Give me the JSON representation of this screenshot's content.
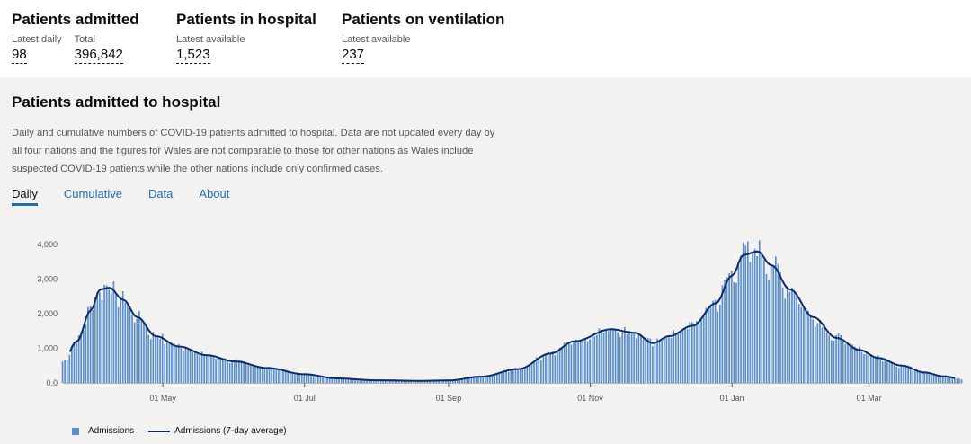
{
  "headlines": [
    {
      "title": "Patients admitted",
      "metrics": [
        {
          "label": "Latest daily",
          "value": "98"
        },
        {
          "label": "Total",
          "value": "396,842"
        }
      ]
    },
    {
      "title": "Patients in hospital",
      "metrics": [
        {
          "label": "Latest available",
          "value": "1,523"
        }
      ]
    },
    {
      "title": "Patients on ventilation",
      "metrics": [
        {
          "label": "Latest available",
          "value": "237"
        }
      ]
    }
  ],
  "card": {
    "title": "Patients admitted to hospital",
    "description": "Daily and cumulative numbers of COVID-19 patients admitted to hospital. Data are not updated every day by all four nations and the figures for Wales are not comparable to those for other nations as Wales include suspected COVID-19 patients while the other nations include only confirmed cases.",
    "tabs": [
      "Daily",
      "Cumulative",
      "Data",
      "About"
    ],
    "active_tab": "Daily"
  },
  "colors": {
    "bar": "#5b8fc9",
    "line": "#0b2b6b",
    "accent": "#1d70b8"
  },
  "chart_data": {
    "type": "bar",
    "x_start": "2020-03-19",
    "x_end": "2021-04-10",
    "x_ticks": [
      "01 May",
      "01 Jul",
      "01 Sep",
      "01 Nov",
      "01 Jan",
      "01 Mar"
    ],
    "y_ticks": [
      "0.0",
      "1,000",
      "2,000",
      "3,000",
      "4,000"
    ],
    "ylim": [
      0,
      4300
    ],
    "series": [
      {
        "name": "Admissions",
        "kind": "bar"
      },
      {
        "name": "Admissions (7-day average)",
        "kind": "line"
      }
    ],
    "anchors": [
      [
        "2020-03-19",
        600
      ],
      [
        "2020-03-25",
        1200
      ],
      [
        "2020-03-31",
        2100
      ],
      [
        "2020-04-04",
        2700
      ],
      [
        "2020-04-08",
        2750
      ],
      [
        "2020-04-14",
        2400
      ],
      [
        "2020-04-20",
        1900
      ],
      [
        "2020-04-28",
        1350
      ],
      [
        "2020-05-08",
        1050
      ],
      [
        "2020-05-20",
        800
      ],
      [
        "2020-06-01",
        620
      ],
      [
        "2020-06-15",
        430
      ],
      [
        "2020-07-01",
        250
      ],
      [
        "2020-07-15",
        130
      ],
      [
        "2020-08-01",
        75
      ],
      [
        "2020-08-20",
        60
      ],
      [
        "2020-09-01",
        70
      ],
      [
        "2020-09-15",
        180
      ],
      [
        "2020-10-01",
        400
      ],
      [
        "2020-10-15",
        850
      ],
      [
        "2020-10-25",
        1200
      ],
      [
        "2020-11-10",
        1550
      ],
      [
        "2020-11-20",
        1450
      ],
      [
        "2020-11-28",
        1150
      ],
      [
        "2020-12-05",
        1350
      ],
      [
        "2020-12-15",
        1650
      ],
      [
        "2020-12-25",
        2300
      ],
      [
        "2021-01-01",
        3100
      ],
      [
        "2021-01-06",
        3700
      ],
      [
        "2021-01-12",
        3800
      ],
      [
        "2021-01-18",
        3400
      ],
      [
        "2021-01-26",
        2700
      ],
      [
        "2021-02-05",
        1900
      ],
      [
        "2021-02-15",
        1300
      ],
      [
        "2021-02-25",
        950
      ],
      [
        "2021-03-05",
        720
      ],
      [
        "2021-03-15",
        500
      ],
      [
        "2021-03-25",
        300
      ],
      [
        "2021-04-02",
        190
      ],
      [
        "2021-04-10",
        110
      ]
    ]
  }
}
